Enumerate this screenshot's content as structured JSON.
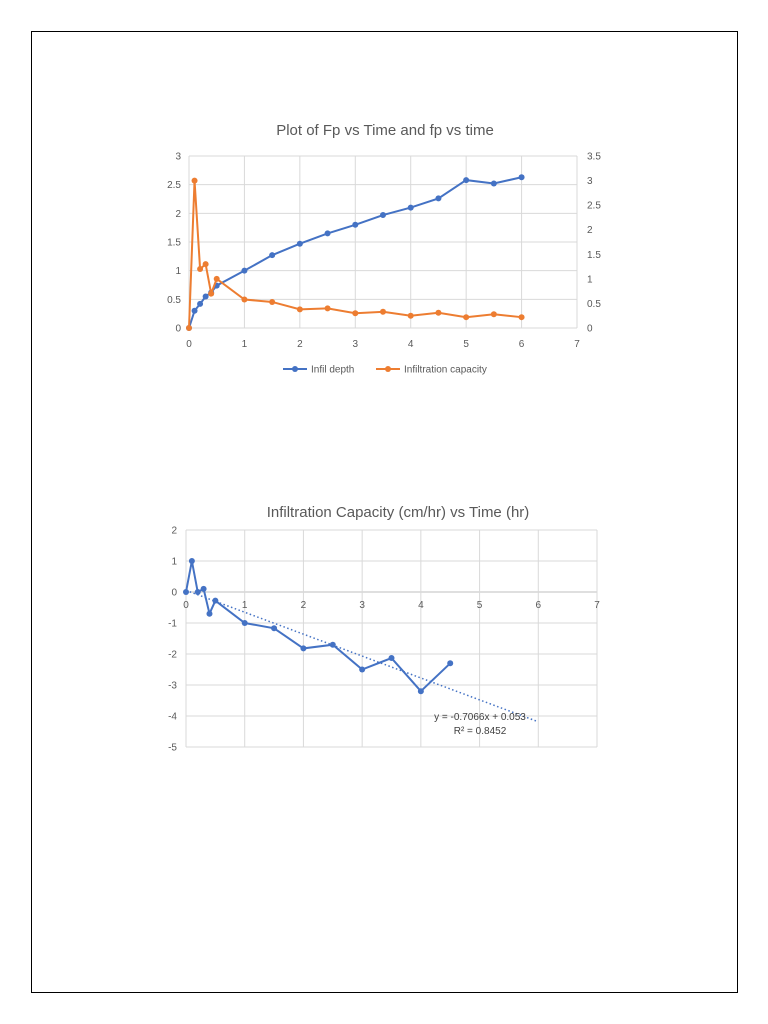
{
  "chart_data": [
    {
      "type": "line",
      "title": "Plot of Fp vs Time and fp vs time",
      "x_ticks": [
        0,
        1,
        2,
        3,
        4,
        5,
        6,
        7
      ],
      "xlim": [
        0,
        7
      ],
      "y_left_ticks": [
        0,
        0.5,
        1,
        1.5,
        2,
        2.5,
        3
      ],
      "ylim_left": [
        0,
        3
      ],
      "y_right_ticks": [
        0,
        0.5,
        1,
        1.5,
        2,
        2.5,
        3,
        3.5
      ],
      "ylim_right": [
        0,
        3.5
      ],
      "grid": true,
      "legend_position": "bottom",
      "series": [
        {
          "name": "Infil depth",
          "axis": "left",
          "color": "#4472c4",
          "x": [
            0,
            0.1,
            0.2,
            0.3,
            0.4,
            0.5,
            1,
            1.5,
            2,
            2.5,
            3,
            3.5,
            4,
            4.5,
            5,
            5.5,
            6
          ],
          "y": [
            0,
            0.3,
            0.42,
            0.55,
            0.62,
            0.74,
            1.0,
            1.27,
            1.47,
            1.65,
            1.8,
            1.97,
            2.1,
            2.26,
            2.58,
            2.52,
            2.63
          ]
        },
        {
          "name": "Infiltration capacity",
          "axis": "right",
          "color": "#ed7d31",
          "x": [
            0,
            0.1,
            0.2,
            0.3,
            0.4,
            0.5,
            1,
            1.5,
            2,
            2.5,
            3,
            3.5,
            4,
            4.5,
            5,
            5.5,
            6
          ],
          "y": [
            0,
            3.0,
            1.2,
            1.3,
            0.7,
            1.0,
            0.58,
            0.53,
            0.38,
            0.4,
            0.3,
            0.33,
            0.25,
            0.31,
            0.22,
            0.28,
            0.22
          ]
        }
      ]
    },
    {
      "type": "line",
      "title": "Infiltration Capacity (cm/hr) vs Time (hr)",
      "x_ticks": [
        0,
        1,
        2,
        3,
        4,
        5,
        6,
        7
      ],
      "xlim": [
        0,
        7
      ],
      "y_ticks": [
        2,
        1,
        0,
        -1,
        -2,
        -3,
        -4,
        -5
      ],
      "ylim": [
        -5,
        2
      ],
      "grid": true,
      "series": [
        {
          "color": "#4472c4",
          "x": [
            0,
            0.1,
            0.2,
            0.3,
            0.4,
            0.5,
            1,
            1.5,
            2,
            2.5,
            3,
            3.5,
            4,
            4.5
          ],
          "y": [
            0,
            1.0,
            0,
            0.1,
            -0.7,
            -0.28,
            -1.0,
            -1.17,
            -1.82,
            -1.7,
            -2.5,
            -2.13,
            -3.2,
            -2.3
          ]
        }
      ],
      "trendline": {
        "slope": -0.7066,
        "intercept": 0.053,
        "x_range": [
          0,
          6
        ],
        "color": "#4472c4",
        "style": "dotted",
        "equation_label": "y = -0.7066x + 0.053",
        "r2_label": "R² = 0.8452"
      }
    }
  ]
}
